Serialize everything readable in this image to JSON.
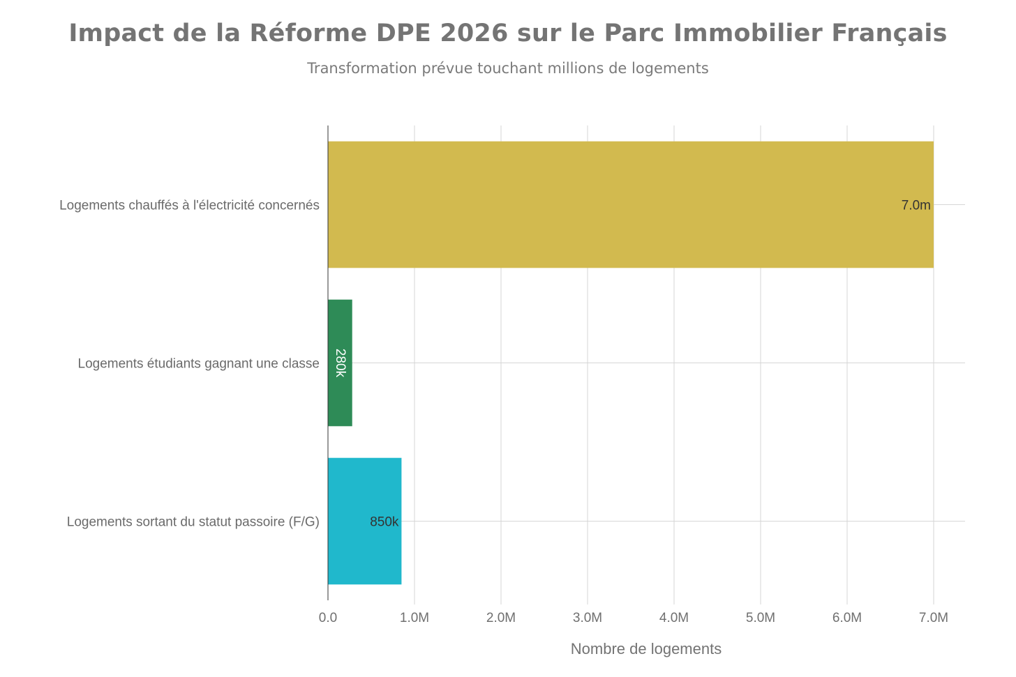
{
  "chart_data": {
    "type": "bar",
    "orientation": "horizontal",
    "title": "Impact de la Réforme DPE 2026 sur le Parc Immobilier Français",
    "subtitle": "Transformation prévue touchant millions de logements",
    "xlabel": "Nombre de logements",
    "ylabel": "",
    "xlim": [
      0,
      7000000
    ],
    "xticks": [
      {
        "value": 0,
        "label": "0.0"
      },
      {
        "value": 1000000,
        "label": "1.0M"
      },
      {
        "value": 2000000,
        "label": "2.0M"
      },
      {
        "value": 3000000,
        "label": "3.0M"
      },
      {
        "value": 4000000,
        "label": "4.0M"
      },
      {
        "value": 5000000,
        "label": "5.0M"
      },
      {
        "value": 6000000,
        "label": "6.0M"
      },
      {
        "value": 7000000,
        "label": "7.0M"
      }
    ],
    "grid": true,
    "legend": "none",
    "bars": [
      {
        "category": "Logements chauffés à l'électricité concernés",
        "value": 7000000,
        "label": "7.0m",
        "color": "#d2ba4f",
        "label_color": "#333333",
        "label_rotated": false
      },
      {
        "category": "Logements étudiants gagnant une classe",
        "value": 280000,
        "label": "280k",
        "color": "#2e8b57",
        "label_color": "#ffffff",
        "label_rotated": true
      },
      {
        "category": "Logements sortant du statut passoire (F/G)",
        "value": 850000,
        "label": "850k",
        "color": "#20b8cc",
        "label_color": "#333333",
        "label_rotated": false
      }
    ],
    "colors": {
      "grid": "#d6d6d6",
      "axis_line": "#333333"
    }
  }
}
